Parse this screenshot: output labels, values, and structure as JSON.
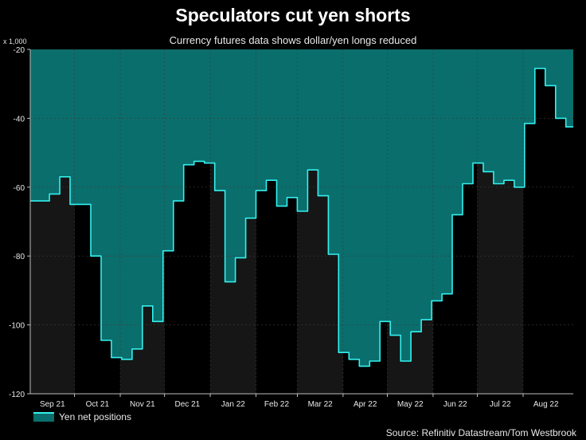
{
  "title": "Speculators cut yen shorts",
  "subtitle": "Currency futures data shows dollar/yen longs reduced",
  "unit_label": "x 1,000",
  "source": "Source: Refinitiv Datastream/Tom Westbrook",
  "legend_label": "Yen net positions",
  "colors": {
    "background": "#000000",
    "fill": "#0a6e6c",
    "line": "#33f0ee",
    "band": "#161616",
    "grid": "#3a3a3a"
  },
  "chart_data": {
    "type": "area",
    "title": "Speculators cut yen shorts",
    "subtitle": "Currency futures data shows dollar/yen longs reduced",
    "ylim": [
      -120,
      -20
    ],
    "yticks": [
      -20,
      -40,
      -60,
      -80,
      -100,
      -120
    ],
    "xlabel": "",
    "ylabel": "",
    "months": [
      "Sep 21",
      "Oct 21",
      "Nov 21",
      "Dec 21",
      "Jan 22",
      "Feb 22",
      "Mar 22",
      "Apr 22",
      "May 22",
      "Jun 22",
      "Jul 22",
      "Aug 22"
    ],
    "grid": true,
    "legend_position": "bottom-left",
    "series": [
      {
        "name": "Yen net positions",
        "x": [
          "2021-09-07",
          "2021-09-14",
          "2021-09-21",
          "2021-09-28",
          "2021-10-05",
          "2021-10-12",
          "2021-10-19",
          "2021-10-26",
          "2021-11-02",
          "2021-11-09",
          "2021-11-16",
          "2021-11-23",
          "2021-11-30",
          "2021-12-07",
          "2021-12-14",
          "2021-12-21",
          "2021-12-28",
          "2022-01-04",
          "2022-01-11",
          "2022-01-18",
          "2022-01-25",
          "2022-02-01",
          "2022-02-08",
          "2022-02-15",
          "2022-02-22",
          "2022-03-01",
          "2022-03-08",
          "2022-03-15",
          "2022-03-22",
          "2022-03-29",
          "2022-04-05",
          "2022-04-12",
          "2022-04-19",
          "2022-04-26",
          "2022-05-03",
          "2022-05-10",
          "2022-05-17",
          "2022-05-24",
          "2022-05-31",
          "2022-06-07",
          "2022-06-14",
          "2022-06-21",
          "2022-06-28",
          "2022-07-05",
          "2022-07-12",
          "2022-07-19",
          "2022-07-26",
          "2022-08-02",
          "2022-08-09",
          "2022-08-16",
          "2022-08-23",
          "2022-08-30"
        ],
        "values": [
          -64,
          -62,
          -57,
          -65,
          -65,
          -80,
          -104.5,
          -109.5,
          -110,
          -107,
          -94.5,
          -99,
          -78.5,
          -64,
          -53.5,
          -52.5,
          -53,
          -61,
          -87.5,
          -80.5,
          -69,
          -61,
          -58,
          -65.5,
          -63,
          -67,
          -55,
          -62.5,
          -79.5,
          -108,
          -110,
          -112,
          -110.5,
          -99,
          -103,
          -110.5,
          -102,
          -98.5,
          -93,
          -91,
          -68,
          -59,
          -53,
          -55.5,
          -59,
          -58,
          -60,
          -41.5,
          -25.5,
          -30.5,
          -40,
          -42.5
        ]
      }
    ]
  }
}
